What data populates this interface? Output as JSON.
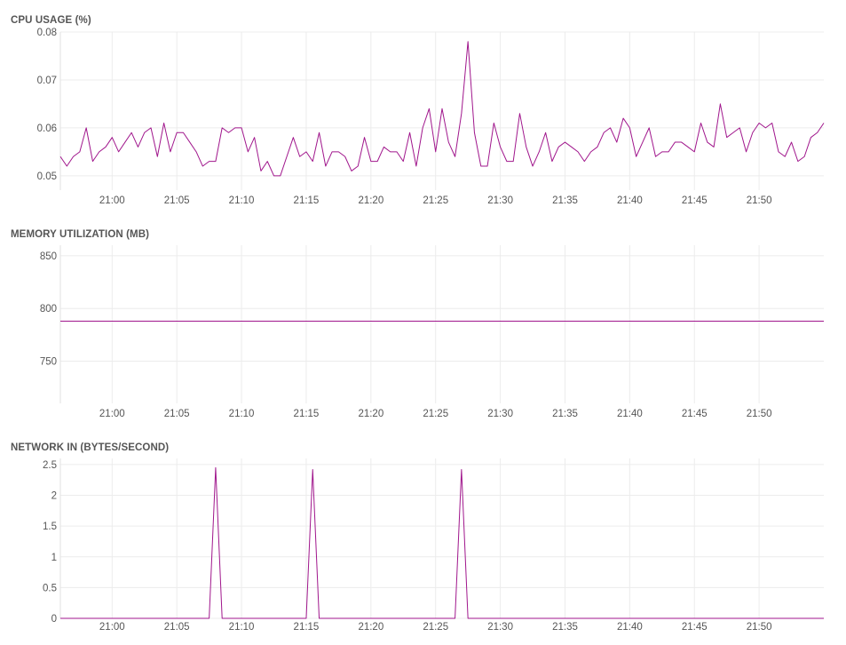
{
  "accent_color": "#a0168c",
  "charts": [
    {
      "title": "CPU USAGE (%)",
      "chart_data": {
        "type": "line",
        "x_ticks": [
          "21:00",
          "21:05",
          "21:10",
          "21:15",
          "21:20",
          "21:25",
          "21:30",
          "21:35",
          "21:40",
          "21:45",
          "21:50"
        ],
        "xlim": [
          "20:56",
          "21:55"
        ],
        "y_ticks": [
          "0.05",
          "0.06",
          "0.07",
          "0.08"
        ],
        "ylim": [
          0.047,
          0.08
        ],
        "grid": true,
        "series": [
          {
            "color": "#a0168c",
            "x": [
              "20:56:00",
              "20:56:30",
              "20:57:00",
              "20:57:30",
              "20:58:00",
              "20:58:30",
              "20:59:00",
              "20:59:30",
              "21:00:00",
              "21:00:30",
              "21:01:00",
              "21:01:30",
              "21:02:00",
              "21:02:30",
              "21:03:00",
              "21:03:30",
              "21:04:00",
              "21:04:30",
              "21:05:00",
              "21:05:30",
              "21:06:00",
              "21:06:30",
              "21:07:00",
              "21:07:30",
              "21:08:00",
              "21:08:30",
              "21:09:00",
              "21:09:30",
              "21:10:00",
              "21:10:30",
              "21:11:00",
              "21:11:30",
              "21:12:00",
              "21:12:30",
              "21:13:00",
              "21:13:30",
              "21:14:00",
              "21:14:30",
              "21:15:00",
              "21:15:30",
              "21:16:00",
              "21:16:30",
              "21:17:00",
              "21:17:30",
              "21:18:00",
              "21:18:30",
              "21:19:00",
              "21:19:30",
              "21:20:00",
              "21:20:30",
              "21:21:00",
              "21:21:30",
              "21:22:00",
              "21:22:30",
              "21:23:00",
              "21:23:30",
              "21:24:00",
              "21:24:30",
              "21:25:00",
              "21:25:30",
              "21:26:00",
              "21:26:30",
              "21:27:00",
              "21:27:30",
              "21:28:00",
              "21:28:30",
              "21:29:00",
              "21:29:30",
              "21:30:00",
              "21:30:30",
              "21:31:00",
              "21:31:30",
              "21:32:00",
              "21:32:30",
              "21:33:00",
              "21:33:30",
              "21:34:00",
              "21:34:30",
              "21:35:00",
              "21:35:30",
              "21:36:00",
              "21:36:30",
              "21:37:00",
              "21:37:30",
              "21:38:00",
              "21:38:30",
              "21:39:00",
              "21:39:30",
              "21:40:00",
              "21:40:30",
              "21:41:00",
              "21:41:30",
              "21:42:00",
              "21:42:30",
              "21:43:00",
              "21:43:30",
              "21:44:00",
              "21:44:30",
              "21:45:00",
              "21:45:30",
              "21:46:00",
              "21:46:30",
              "21:47:00",
              "21:47:30",
              "21:48:00",
              "21:48:30",
              "21:49:00",
              "21:49:30",
              "21:50:00",
              "21:50:30",
              "21:51:00",
              "21:51:30",
              "21:52:00",
              "21:52:30",
              "21:53:00",
              "21:53:30",
              "21:54:00",
              "21:54:30",
              "21:55:00"
            ],
            "values": [
              0.054,
              0.052,
              0.054,
              0.055,
              0.06,
              0.053,
              0.055,
              0.056,
              0.058,
              0.055,
              0.057,
              0.059,
              0.056,
              0.059,
              0.06,
              0.054,
              0.061,
              0.055,
              0.059,
              0.059,
              0.057,
              0.055,
              0.052,
              0.053,
              0.053,
              0.06,
              0.059,
              0.06,
              0.06,
              0.055,
              0.058,
              0.051,
              0.053,
              0.05,
              0.05,
              0.054,
              0.058,
              0.054,
              0.055,
              0.053,
              0.059,
              0.052,
              0.055,
              0.055,
              0.054,
              0.051,
              0.052,
              0.058,
              0.053,
              0.053,
              0.056,
              0.055,
              0.055,
              0.053,
              0.059,
              0.052,
              0.06,
              0.064,
              0.055,
              0.064,
              0.057,
              0.054,
              0.063,
              0.078,
              0.059,
              0.052,
              0.052,
              0.061,
              0.056,
              0.053,
              0.053,
              0.063,
              0.056,
              0.052,
              0.055,
              0.059,
              0.053,
              0.056,
              0.057,
              0.056,
              0.055,
              0.053,
              0.055,
              0.056,
              0.059,
              0.06,
              0.057,
              0.062,
              0.06,
              0.054,
              0.057,
              0.06,
              0.054,
              0.055,
              0.055,
              0.057,
              0.057,
              0.056,
              0.055,
              0.061,
              0.057,
              0.056,
              0.065,
              0.058,
              0.059,
              0.06,
              0.055,
              0.059,
              0.061,
              0.06,
              0.061,
              0.055,
              0.054,
              0.057,
              0.053,
              0.054,
              0.058,
              0.059,
              0.061
            ]
          }
        ]
      }
    },
    {
      "title": "MEMORY UTILIZATION (MB)",
      "chart_data": {
        "type": "line",
        "x_ticks": [
          "21:00",
          "21:05",
          "21:10",
          "21:15",
          "21:20",
          "21:25",
          "21:30",
          "21:35",
          "21:40",
          "21:45",
          "21:50"
        ],
        "xlim": [
          "20:56",
          "21:55"
        ],
        "y_ticks": [
          "750",
          "800",
          "850"
        ],
        "ylim": [
          710,
          860
        ],
        "grid": true,
        "series": [
          {
            "color": "#a0168c",
            "x": [
              "20:56:00",
              "21:55:00"
            ],
            "values": [
              788,
              788
            ]
          }
        ]
      }
    },
    {
      "title": "NETWORK IN (BYTES/SECOND)",
      "chart_data": {
        "type": "line",
        "x_ticks": [
          "21:00",
          "21:05",
          "21:10",
          "21:15",
          "21:20",
          "21:25",
          "21:30",
          "21:35",
          "21:40",
          "21:45",
          "21:50"
        ],
        "xlim": [
          "20:56",
          "21:55"
        ],
        "y_ticks": [
          "0",
          "0.5",
          "1",
          "1.5",
          "2",
          "2.5"
        ],
        "ylim": [
          0,
          2.6
        ],
        "grid": true,
        "series": [
          {
            "color": "#a0168c",
            "x": [
              "20:56:00",
              "21:07:30",
              "21:08:00",
              "21:08:30",
              "21:15:00",
              "21:15:30",
              "21:16:00",
              "21:26:30",
              "21:27:00",
              "21:27:30",
              "21:55:00"
            ],
            "values": [
              0,
              0,
              2.45,
              0,
              0,
              2.42,
              0,
              0,
              2.42,
              0,
              0
            ]
          }
        ]
      }
    }
  ]
}
